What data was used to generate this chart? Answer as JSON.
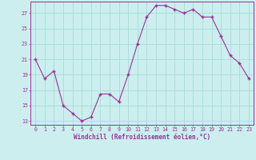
{
  "x": [
    0,
    1,
    2,
    3,
    4,
    5,
    6,
    7,
    8,
    9,
    10,
    11,
    12,
    13,
    14,
    15,
    16,
    17,
    18,
    19,
    20,
    21,
    22,
    23
  ],
  "y": [
    21,
    18.5,
    19.5,
    15,
    14,
    13,
    13.5,
    16.5,
    16.5,
    15.5,
    19,
    23,
    26.5,
    28,
    28,
    27.5,
    27,
    27.5,
    26.5,
    26.5,
    24,
    21.5,
    20.5,
    18.5
  ],
  "line_color": "#993399",
  "marker_color": "#993399",
  "bg_color": "#cceeee",
  "grid_color": "#aadddd",
  "xlabel": "Windchill (Refroidissement éolien,°C)",
  "xlabel_color": "#993399",
  "yticks": [
    13,
    15,
    17,
    19,
    21,
    23,
    25,
    27
  ],
  "xticks": [
    0,
    1,
    2,
    3,
    4,
    5,
    6,
    7,
    8,
    9,
    10,
    11,
    12,
    13,
    14,
    15,
    16,
    17,
    18,
    19,
    20,
    21,
    22,
    23
  ],
  "ylim": [
    12.5,
    28.5
  ],
  "xlim": [
    -0.5,
    23.5
  ],
  "tick_color": "#993399",
  "spine_color": "#993399",
  "tick_fontsize": 4.8,
  "xlabel_fontsize": 5.5
}
